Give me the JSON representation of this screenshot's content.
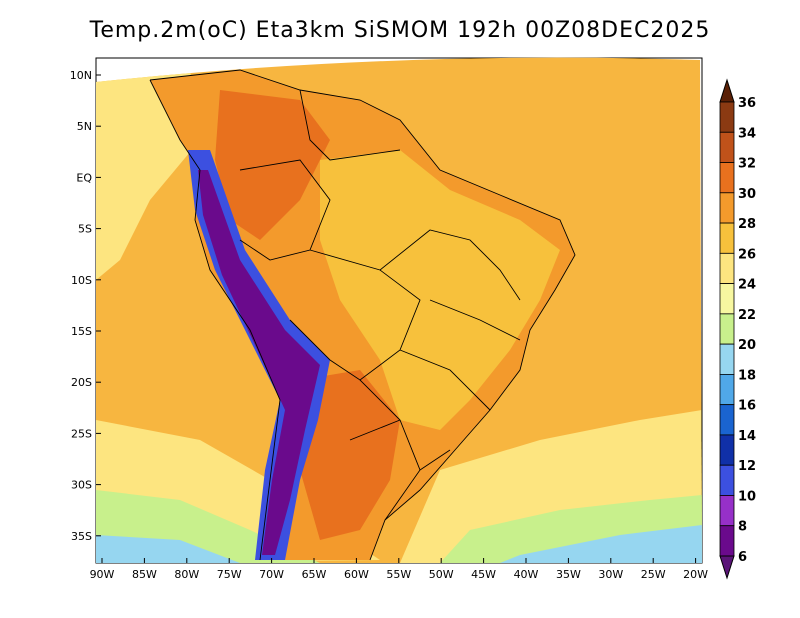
{
  "title": "Temp.2m(oC) Eta3km SiSMOM 192h 00Z08DEC2025",
  "lat_ticks": [
    "10N",
    "5N",
    "EQ",
    "5S",
    "10S",
    "15S",
    "20S",
    "25S",
    "30S",
    "35S"
  ],
  "lon_ticks": [
    "90W",
    "85W",
    "80W",
    "75W",
    "70W",
    "65W",
    "60W",
    "55W",
    "50W",
    "45W",
    "40W",
    "35W",
    "30W",
    "25W",
    "20W"
  ],
  "colorbar": {
    "labels": [
      "36",
      "34",
      "32",
      "30",
      "28",
      "26",
      "24",
      "22",
      "20",
      "18",
      "16",
      "14",
      "12",
      "10",
      "8",
      "6"
    ],
    "colors": [
      "#5a2006",
      "#8b3a12",
      "#c0521a",
      "#e8711e",
      "#f39a2c",
      "#f7c13c",
      "#fde580",
      "#f7f7a0",
      "#c8f08c",
      "#96d6f0",
      "#50a8e8",
      "#1a64d0",
      "#1030a8",
      "#3c50e0",
      "#9630c8",
      "#6a0a8c",
      "#5a1478"
    ]
  },
  "map": {
    "colors": {
      "ocean_warm": "#f7b640",
      "ocean_mild": "#fde580",
      "ocean_cool": "#c8f08c",
      "ocean_cold": "#96d6f0",
      "land_hot": "#e8711e",
      "land_warm": "#f39a2c",
      "land_mild": "#f7c13c",
      "andes_cold": "#6a0a8c",
      "andes_cool": "#3c50e0"
    }
  }
}
